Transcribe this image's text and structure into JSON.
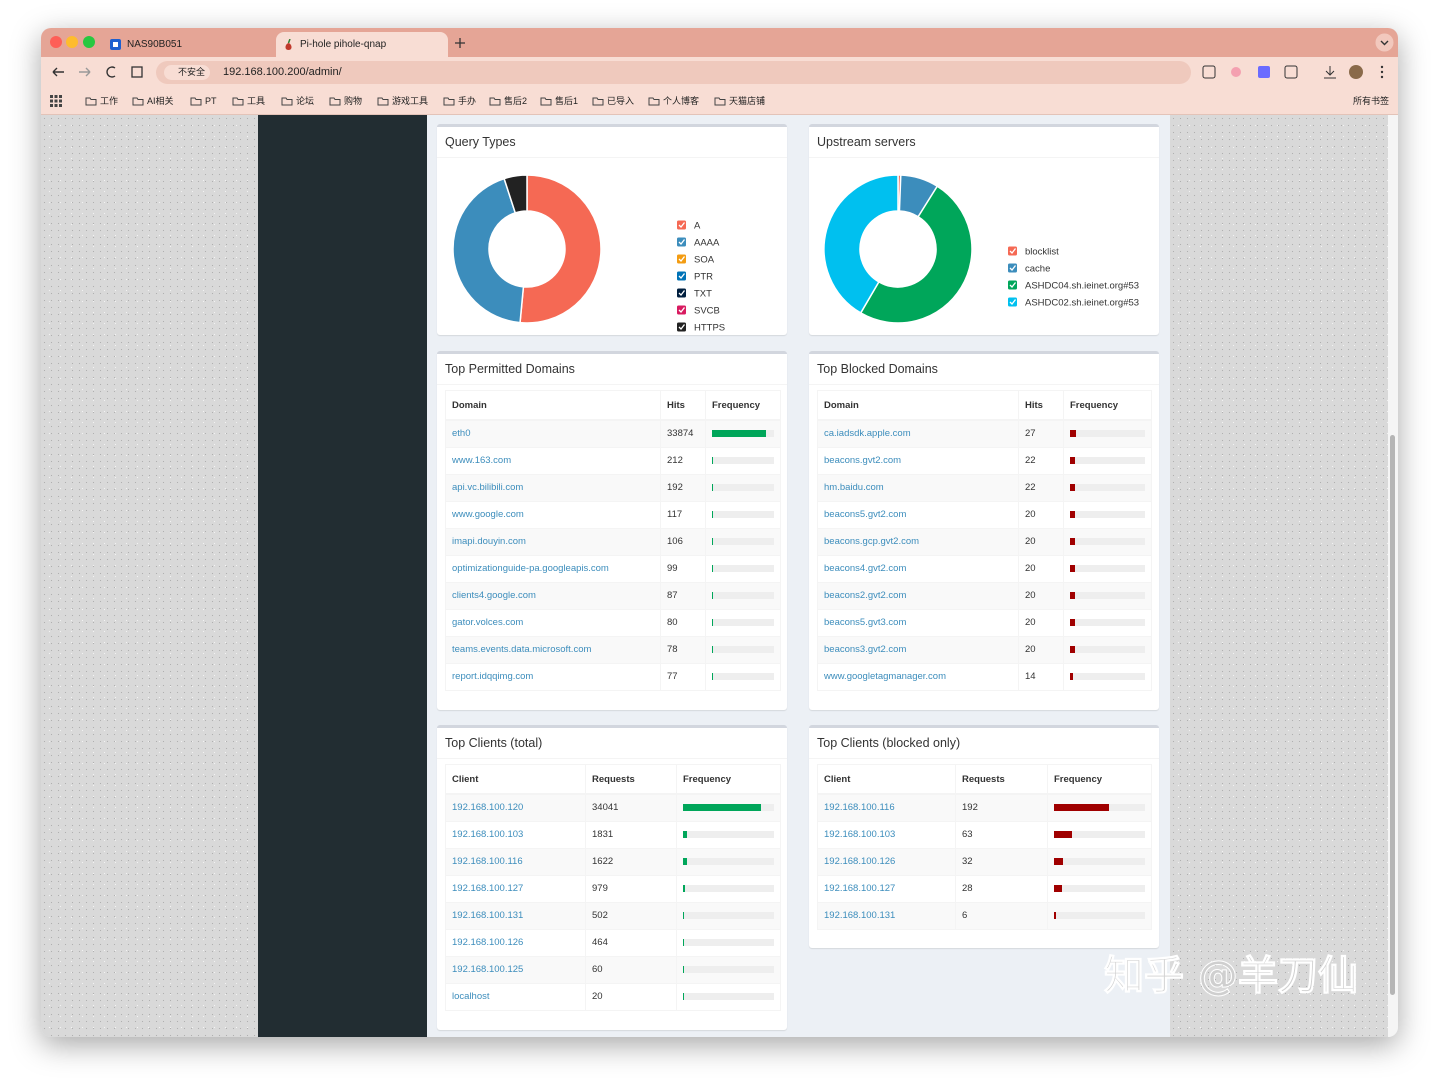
{
  "browser": {
    "tabs": [
      "NAS90B051",
      "Pi-hole pihole-qnap"
    ],
    "security": "不安全",
    "url": "192.168.100.200/admin/",
    "bookmarks": [
      "工作",
      "AI相关",
      "PT",
      "工具",
      "论坛",
      "购物",
      "游戏工具",
      "手办",
      "售后2",
      "售后1",
      "已导入",
      "个人博客",
      "天猫店铺"
    ],
    "all_bookmarks": "所有书签"
  },
  "chart_data": [
    {
      "type": "doughnut",
      "title": "Query Types",
      "categories": [
        "A",
        "AAAA",
        "SOA",
        "PTR",
        "TXT",
        "SVCB",
        "HTTPS"
      ],
      "values": [
        51.5,
        43.5,
        0,
        0,
        0,
        0,
        5
      ],
      "colors": [
        "#f56954",
        "#3c8dbc",
        "#f39c12",
        "#0073b7",
        "#001f3f",
        "#d81b60",
        "#222222"
      ]
    },
    {
      "type": "doughnut",
      "title": "Upstream servers",
      "categories": [
        "blocklist",
        "cache",
        "ASHDC04.sh.ieinet.org#53",
        "ASHDC02.sh.ieinet.org#53"
      ],
      "values": [
        0.6,
        8.3,
        49.5,
        41.6
      ],
      "colors": [
        "#f56954",
        "#3c8dbc",
        "#00a65a",
        "#00c0ef"
      ]
    }
  ],
  "tables": [
    {
      "title": "Top Permitted Domains",
      "columns": [
        "Domain",
        "Hits",
        "Frequency"
      ],
      "bar_color": "#00a65a",
      "rows": [
        [
          "eth0",
          33874,
          87
        ],
        [
          "www.163.com",
          212,
          0.5
        ],
        [
          "api.vc.bilibili.com",
          192,
          0.5
        ],
        [
          "www.google.com",
          117,
          0.3
        ],
        [
          "imapi.douyin.com",
          106,
          0.3
        ],
        [
          "optimizationguide-pa.googleapis.com",
          99,
          0.3
        ],
        [
          "clients4.google.com",
          87,
          0.2
        ],
        [
          "gator.volces.com",
          80,
          0.2
        ],
        [
          "teams.events.data.microsoft.com",
          78,
          0.2
        ],
        [
          "report.idqqimg.com",
          77,
          0.2
        ]
      ]
    },
    {
      "title": "Top Blocked Domains",
      "columns": [
        "Domain",
        "Hits",
        "Frequency"
      ],
      "bar_color": "#a00000",
      "rows": [
        [
          "ca.iadsdk.apple.com",
          27,
          8
        ],
        [
          "beacons.gvt2.com",
          22,
          7
        ],
        [
          "hm.baidu.com",
          22,
          7
        ],
        [
          "beacons5.gvt2.com",
          20,
          6
        ],
        [
          "beacons.gcp.gvt2.com",
          20,
          6
        ],
        [
          "beacons4.gvt2.com",
          20,
          6
        ],
        [
          "beacons2.gvt2.com",
          20,
          6
        ],
        [
          "beacons5.gvt3.com",
          20,
          6
        ],
        [
          "beacons3.gvt2.com",
          20,
          6
        ],
        [
          "www.googletagmanager.com",
          14,
          4
        ]
      ]
    },
    {
      "title": "Top Clients (total)",
      "columns": [
        "Client",
        "Requests",
        "Frequency"
      ],
      "bar_color": "#00a65a",
      "rows": [
        [
          "192.168.100.120",
          34041,
          86
        ],
        [
          "192.168.100.103",
          1831,
          4.6
        ],
        [
          "192.168.100.116",
          1622,
          4.1
        ],
        [
          "192.168.100.127",
          979,
          2.5
        ],
        [
          "192.168.100.131",
          502,
          1.3
        ],
        [
          "192.168.100.126",
          464,
          1.2
        ],
        [
          "192.168.100.125",
          60,
          0.2
        ],
        [
          "localhost",
          20,
          0.05
        ]
      ]
    },
    {
      "title": "Top Clients (blocked only)",
      "columns": [
        "Client",
        "Requests",
        "Frequency"
      ],
      "bar_color": "#a00000",
      "rows": [
        [
          "192.168.100.116",
          192,
          60
        ],
        [
          "192.168.100.103",
          63,
          20
        ],
        [
          "192.168.100.126",
          32,
          10
        ],
        [
          "192.168.100.127",
          28,
          9
        ],
        [
          "192.168.100.131",
          6,
          2
        ]
      ]
    }
  ],
  "watermark": "知乎 @羊刀仙"
}
